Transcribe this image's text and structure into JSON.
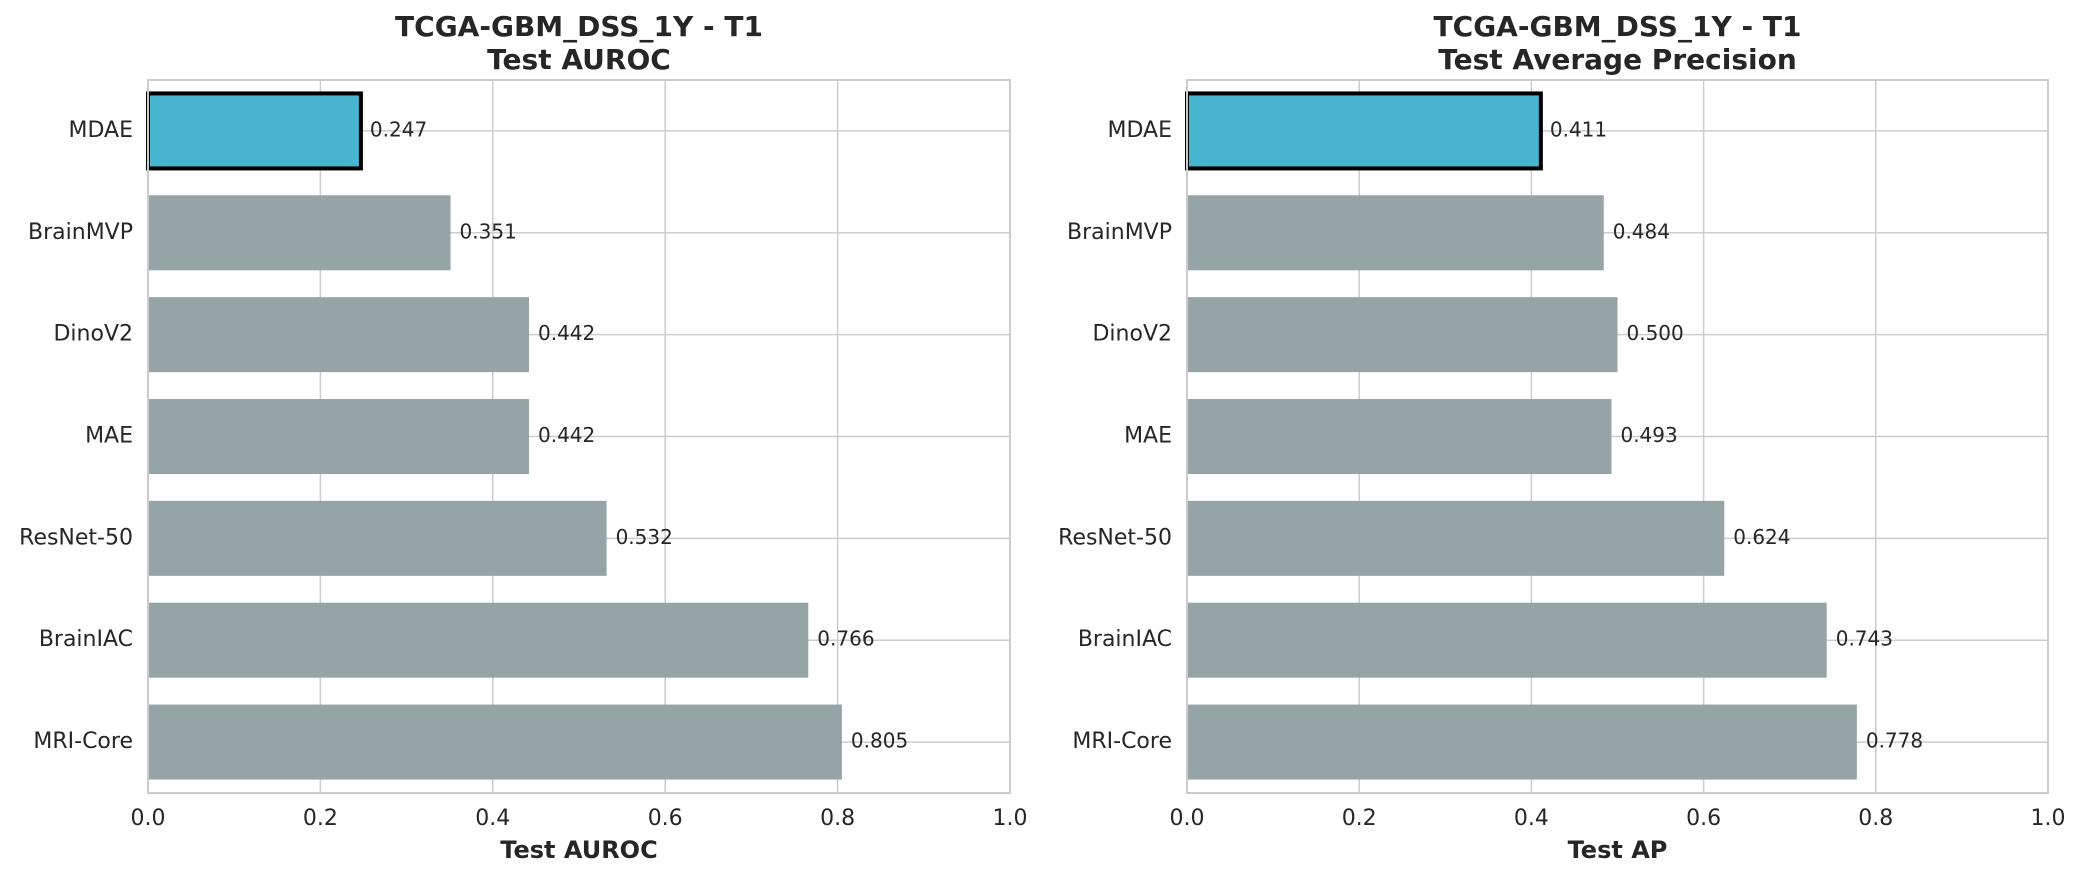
{
  "chart_data": [
    {
      "type": "bar",
      "orientation": "horizontal",
      "title": [
        "TCGA-GBM_DSS_1Y - T1",
        "Test AUROC"
      ],
      "xlabel": "Test AUROC",
      "ylabel": "",
      "xlim": [
        0,
        1.0
      ],
      "xticks": [
        "0.0",
        "0.2",
        "0.4",
        "0.6",
        "0.8",
        "1.0"
      ],
      "grid": true,
      "categories": [
        "MDAE",
        "BrainMVP",
        "DinoV2",
        "MAE",
        "ResNet-50",
        "BrainIAC",
        "MRI-Core"
      ],
      "values": [
        0.247,
        0.351,
        0.442,
        0.442,
        0.532,
        0.766,
        0.805
      ],
      "value_labels": [
        "0.247",
        "0.351",
        "0.442",
        "0.442",
        "0.532",
        "0.766",
        "0.805"
      ],
      "highlight": "MDAE",
      "colors": {
        "highlight": "#47b5d0",
        "default": "#95a5a6",
        "highlight_edge": "#000000"
      }
    },
    {
      "type": "bar",
      "orientation": "horizontal",
      "title": [
        "TCGA-GBM_DSS_1Y - T1",
        "Test Average Precision"
      ],
      "xlabel": "Test AP",
      "ylabel": "",
      "xlim": [
        0,
        1.0
      ],
      "xticks": [
        "0.0",
        "0.2",
        "0.4",
        "0.6",
        "0.8",
        "1.0"
      ],
      "grid": true,
      "categories": [
        "MDAE",
        "BrainMVP",
        "DinoV2",
        "MAE",
        "ResNet-50",
        "BrainIAC",
        "MRI-Core"
      ],
      "values": [
        0.411,
        0.484,
        0.5,
        0.493,
        0.624,
        0.743,
        0.778
      ],
      "value_labels": [
        "0.411",
        "0.484",
        "0.500",
        "0.493",
        "0.624",
        "0.743",
        "0.778"
      ],
      "highlight": "MDAE",
      "colors": {
        "highlight": "#47b5d0",
        "default": "#95a5a6",
        "highlight_edge": "#000000"
      }
    }
  ]
}
